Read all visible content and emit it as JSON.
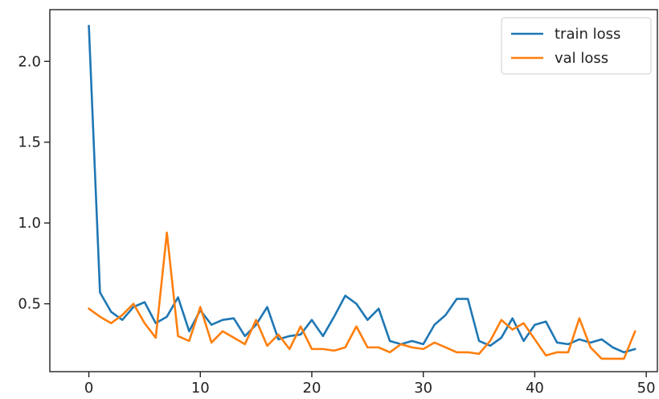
{
  "chart_data": {
    "type": "line",
    "title": "",
    "xlabel": "",
    "ylabel": "",
    "xlim": [
      -3.5,
      51
    ],
    "ylim": [
      0.08,
      2.32
    ],
    "xticks": [
      0,
      10,
      20,
      30,
      40,
      50
    ],
    "yticks": [
      0.5,
      1.0,
      1.5,
      2.0
    ],
    "xtick_labels": [
      "0",
      "10",
      "20",
      "30",
      "40",
      "50"
    ],
    "ytick_labels": [
      "0.5",
      "1.0",
      "1.5",
      "2.0"
    ],
    "grid": false,
    "legend_position": "top-right",
    "x": [
      0,
      1,
      2,
      3,
      4,
      5,
      6,
      7,
      8,
      9,
      10,
      11,
      12,
      13,
      14,
      15,
      16,
      17,
      18,
      19,
      20,
      21,
      22,
      23,
      24,
      25,
      26,
      27,
      28,
      29,
      30,
      31,
      32,
      33,
      34,
      35,
      36,
      37,
      38,
      39,
      40,
      41,
      42,
      43,
      44,
      45,
      46,
      47,
      48,
      49
    ],
    "series": [
      {
        "name": "train loss",
        "color": "#1f77b4",
        "values": [
          2.22,
          0.57,
          0.45,
          0.4,
          0.48,
          0.51,
          0.38,
          0.42,
          0.54,
          0.33,
          0.46,
          0.37,
          0.4,
          0.41,
          0.3,
          0.37,
          0.48,
          0.28,
          0.3,
          0.31,
          0.4,
          0.3,
          0.42,
          0.55,
          0.5,
          0.4,
          0.47,
          0.27,
          0.25,
          0.27,
          0.25,
          0.37,
          0.43,
          0.53,
          0.53,
          0.27,
          0.24,
          0.29,
          0.41,
          0.27,
          0.37,
          0.39,
          0.26,
          0.25,
          0.28,
          0.26,
          0.28,
          0.23,
          0.2,
          0.22
        ]
      },
      {
        "name": "val loss",
        "color": "#ff7f0e",
        "values": [
          0.47,
          0.42,
          0.38,
          0.43,
          0.5,
          0.38,
          0.29,
          0.94,
          0.3,
          0.27,
          0.48,
          0.26,
          0.33,
          0.29,
          0.25,
          0.4,
          0.24,
          0.31,
          0.22,
          0.36,
          0.22,
          0.22,
          0.21,
          0.23,
          0.36,
          0.23,
          0.23,
          0.2,
          0.25,
          0.23,
          0.22,
          0.26,
          0.23,
          0.2,
          0.2,
          0.19,
          0.27,
          0.4,
          0.34,
          0.38,
          0.28,
          0.18,
          0.2,
          0.2,
          0.41,
          0.23,
          0.16,
          0.16,
          0.16,
          0.33
        ]
      }
    ]
  }
}
